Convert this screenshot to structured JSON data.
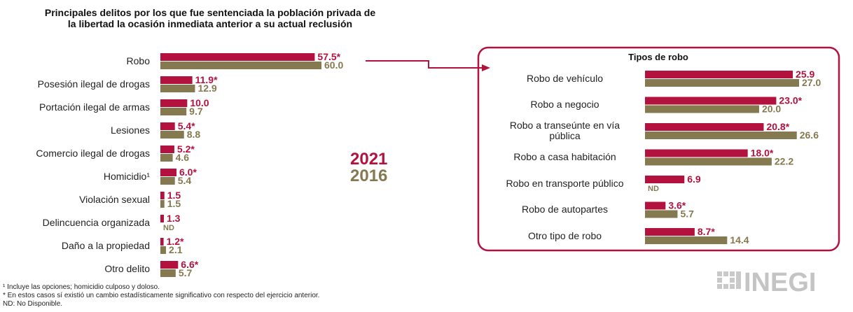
{
  "chart_data": [
    {
      "type": "bar",
      "orientation": "horizontal",
      "title": "Principales delitos por los que fue sentenciada la población privada de la libertad la ocasión inmediata anterior a su actual reclusión",
      "categories": [
        "Robo",
        "Posesión ilegal de drogas",
        "Portación ilegal de armas",
        "Lesiones",
        "Comercio ilegal de drogas",
        "Homicidio¹",
        "Violación sexual",
        "Delincuencia organizada",
        "Daño a la propiedad",
        "Otro delito"
      ],
      "series": [
        {
          "name": "2021",
          "color": "#b3123f",
          "values": [
            57.5,
            11.9,
            10.0,
            5.4,
            5.2,
            6.0,
            1.5,
            1.3,
            1.2,
            6.6
          ],
          "value_labels": [
            "57.5*",
            "11.9*",
            "10.0",
            "5.4*",
            "5.2*",
            "6.0*",
            "1.5",
            "1.3",
            "1.2*",
            "6.6*"
          ]
        },
        {
          "name": "2016",
          "color": "#85794f",
          "values": [
            60.0,
            12.9,
            9.7,
            8.8,
            4.6,
            5.4,
            1.5,
            null,
            2.1,
            5.7
          ],
          "value_labels": [
            "60.0",
            "12.9",
            "9.7",
            "8.8",
            "4.6",
            "5.4",
            "1.5",
            "ND",
            "2.1",
            "5.7"
          ]
        }
      ],
      "xlim": [
        0,
        60
      ]
    },
    {
      "type": "bar",
      "orientation": "horizontal",
      "title": "Tipos de robo",
      "categories": [
        "Robo de vehículo",
        "Robo a negocio",
        "Robo a transeúnte en vía pública",
        "Robo a casa habitación",
        "Robo en transporte público",
        "Robo de autopartes",
        "Otro tipo de robo"
      ],
      "series": [
        {
          "color": "#b3123f",
          "values": [
            25.9,
            23.0,
            20.8,
            18.0,
            6.9,
            3.6,
            8.7
          ],
          "value_labels": [
            "25.9",
            "23.0*",
            "20.8*",
            "18.0*",
            "6.9",
            "3.6*",
            "8.7*"
          ]
        },
        {
          "color": "#85794f",
          "values": [
            27.0,
            20.0,
            26.6,
            22.2,
            null,
            5.7,
            14.4
          ],
          "value_labels": [
            "27.0",
            "20.0",
            "26.6",
            "22.2",
            "ND",
            "5.7",
            "14.4"
          ]
        }
      ],
      "xlim": [
        0,
        27
      ]
    }
  ],
  "footnotes": [
    "¹ Incluye las opciones; homicidio culposo y doloso.",
    "* En estos casos sí existió un cambio estadísticamente significativo con respecto del ejercicio anterior.",
    "ND: No Disponible."
  ],
  "logo": "INEGI"
}
